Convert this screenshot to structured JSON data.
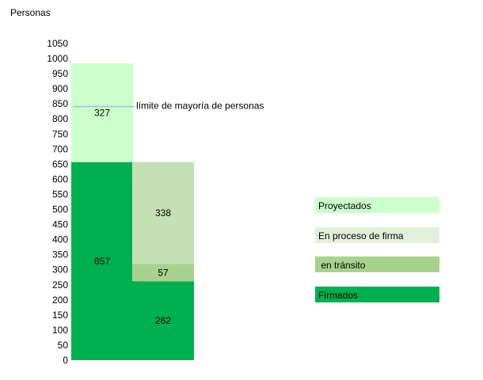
{
  "chart_data": {
    "type": "bar",
    "stacked": true,
    "ylabel": "Personas",
    "ylim": [
      0,
      1050
    ],
    "yticks": [
      0,
      50,
      100,
      150,
      200,
      250,
      300,
      350,
      400,
      450,
      500,
      550,
      600,
      650,
      700,
      750,
      800,
      850,
      900,
      950,
      1000,
      1050
    ],
    "grid": false,
    "categories": [
      "",
      ""
    ],
    "series": [
      {
        "name": "Firmados",
        "color": "#00B050",
        "values": [
          657,
          262
        ]
      },
      {
        "name": "en tránsito",
        "color": "#A9D18E",
        "values": [
          0,
          57
        ]
      },
      {
        "name": "En proceso de firma",
        "color": "#C5E0B4",
        "values": [
          0,
          338
        ]
      },
      {
        "name": "Proyectados",
        "color": "#CCFFCC",
        "values": [
          327,
          0
        ]
      }
    ],
    "data_labels": [
      {
        "series": "Firmados",
        "category_index": 0,
        "text": "657"
      },
      {
        "series": "Firmados",
        "category_index": 1,
        "text": "262"
      },
      {
        "series": "en tránsito",
        "category_index": 1,
        "text": "57"
      },
      {
        "series": "En proceso de firma",
        "category_index": 1,
        "text": "338"
      },
      {
        "series": "Proyectados",
        "category_index": 0,
        "text": "327"
      }
    ],
    "reference_line": {
      "value": 841,
      "label": "límite de mayoría de personas",
      "color": "#9DC3E6"
    },
    "legend": {
      "placement": "right",
      "items": [
        {
          "label": "Proyectados",
          "color": "#CCFFCC"
        },
        {
          "label": "En proceso de firma",
          "color": "#E2EFDA"
        },
        {
          "label": " en tránsito",
          "color": "#A9D18E"
        },
        {
          "label": "Firmados",
          "color": "#00B050"
        }
      ]
    }
  }
}
